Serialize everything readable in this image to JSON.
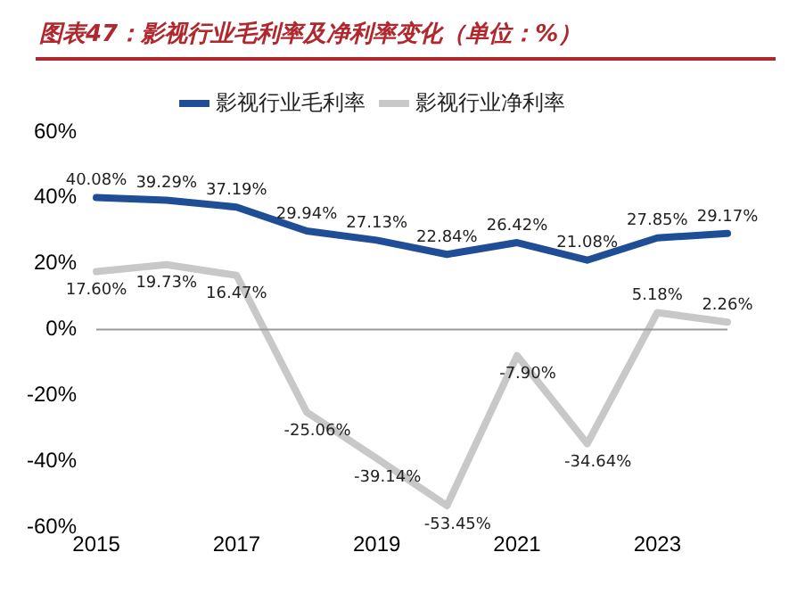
{
  "chart_data": {
    "type": "line",
    "title": "图表47：影视行业毛利率及净利率变化（单位：%）",
    "categories": [
      "2015",
      null,
      "2017",
      null,
      "2019",
      null,
      "2021",
      null,
      "2023",
      null
    ],
    "series": [
      {
        "name": "影视行业毛利率",
        "color": "#1f4e96",
        "values": [
          40.08,
          39.29,
          37.19,
          29.94,
          27.13,
          22.84,
          26.42,
          21.08,
          27.85,
          29.17
        ],
        "value_labels": [
          "40.08%",
          "39.29%",
          "37.19%",
          "29.94%",
          "27.13%",
          "22.84%",
          "26.42%",
          "21.08%",
          "27.85%",
          "29.17%"
        ]
      },
      {
        "name": "影视行业净利率",
        "color": "#c8c8c8",
        "values": [
          17.6,
          19.73,
          16.47,
          -25.06,
          -39.14,
          -53.45,
          -7.9,
          -34.64,
          5.18,
          2.26
        ],
        "value_labels": [
          "17.60%",
          "19.73%",
          "16.47%",
          "-25.06%",
          "-39.14%",
          "-53.45%",
          "-7.90%",
          "-34.64%",
          "5.18%",
          "2.26%"
        ]
      }
    ],
    "ylim": [
      -60,
      60
    ],
    "yticks": [
      {
        "value": -60,
        "label": "-60%"
      },
      {
        "value": -40,
        "label": "-40%"
      },
      {
        "value": -20,
        "label": "-20%"
      },
      {
        "value": 0,
        "label": "0%"
      },
      {
        "value": 20,
        "label": "20%"
      },
      {
        "value": 40,
        "label": "40%"
      },
      {
        "value": 60,
        "label": "60%"
      }
    ],
    "ref_lines": [
      {
        "axis": "y",
        "value": 0,
        "color": "#999999"
      }
    ],
    "grid": false,
    "legend": "top",
    "marker": "none",
    "line_style": "solid"
  }
}
